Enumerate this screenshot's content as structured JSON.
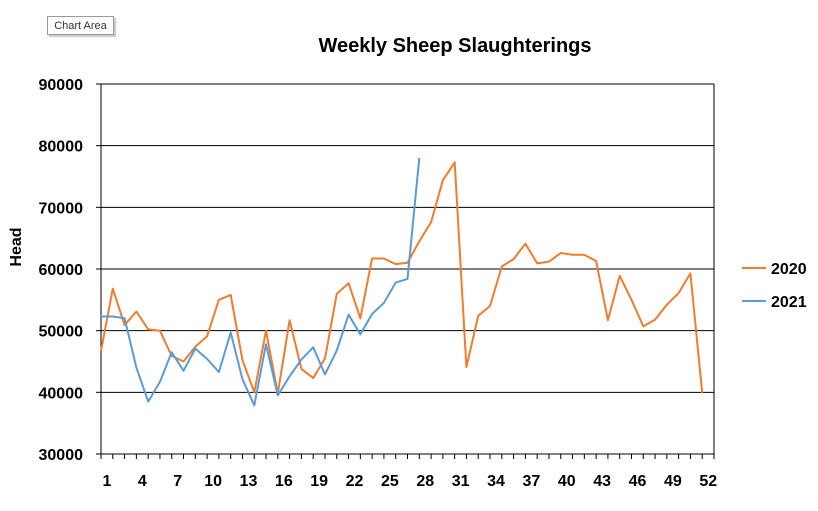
{
  "tooltip": {
    "label": "Chart Area"
  },
  "chart_data": {
    "type": "line",
    "title": "Weekly Sheep Slaughterings",
    "xlabel": "",
    "ylabel": "Head",
    "ylim": [
      30000,
      90000
    ],
    "yticks": [
      30000,
      40000,
      50000,
      60000,
      70000,
      80000,
      90000
    ],
    "xlim": [
      1,
      53
    ],
    "xticks": [
      1,
      4,
      7,
      10,
      13,
      16,
      19,
      22,
      25,
      28,
      31,
      34,
      37,
      40,
      43,
      46,
      49,
      52
    ],
    "grid": "horizontal",
    "legend_position": "right",
    "series": [
      {
        "name": "2020",
        "color": "#ED7D31",
        "x": [
          1,
          2,
          3,
          4,
          5,
          6,
          7,
          8,
          9,
          10,
          11,
          12,
          13,
          14,
          15,
          16,
          17,
          18,
          19,
          20,
          21,
          22,
          23,
          24,
          25,
          26,
          27,
          28,
          29,
          30,
          31,
          32,
          33,
          34,
          35,
          36,
          37,
          38,
          39,
          40,
          41,
          42,
          43,
          44,
          45,
          46,
          47,
          48,
          49,
          50,
          51,
          52
        ],
        "values": [
          46700,
          56800,
          50900,
          53100,
          50200,
          50000,
          45900,
          45000,
          47400,
          49100,
          55000,
          55800,
          45200,
          40000,
          50000,
          39800,
          51700,
          43800,
          42300,
          45500,
          56000,
          57700,
          52000,
          61700,
          61700,
          60800,
          61000,
          64500,
          67600,
          74400,
          77300,
          44100,
          52400,
          54000,
          60400,
          61600,
          64100,
          60900,
          61200,
          62600,
          62300,
          62300,
          61300,
          51700,
          58900,
          55000,
          50700,
          51800,
          54200,
          56100,
          59300,
          39900
        ]
      },
      {
        "name": "2021",
        "color": "#5B9BD5",
        "x": [
          1,
          2,
          3,
          4,
          5,
          6,
          7,
          8,
          9,
          10,
          11,
          12,
          13,
          14,
          15,
          16,
          17,
          18,
          19,
          20,
          21,
          22,
          23,
          24,
          25,
          26,
          27,
          28
        ],
        "values": [
          52300,
          52300,
          52000,
          44000,
          38500,
          41700,
          46500,
          43500,
          47100,
          45400,
          43300,
          49700,
          42100,
          37900,
          47800,
          39500,
          42600,
          45300,
          47300,
          42900,
          46800,
          52600,
          49400,
          52700,
          54500,
          57800,
          58400,
          78000
        ]
      }
    ]
  }
}
